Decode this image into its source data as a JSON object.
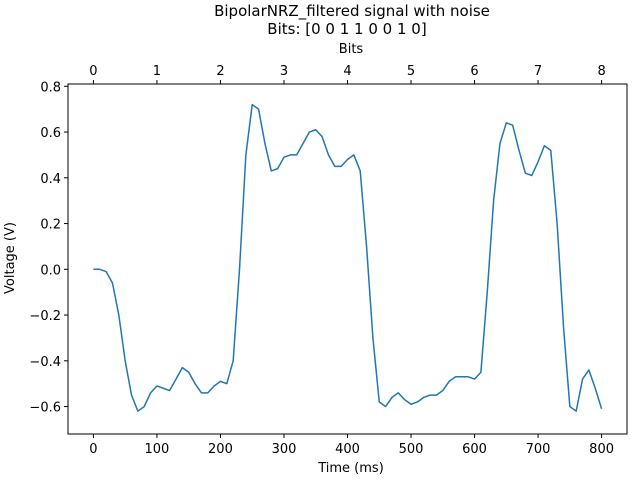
{
  "chart_data": {
    "type": "line",
    "title": "BipolarNRZ_filtered signal with noise",
    "subtitle": "Bits: [0 0 1 1 0 0 1 0]",
    "xlabel": "Time (ms)",
    "ylabel": "Voltage (V)",
    "x2label": "Bits",
    "xlim": [
      -40,
      840
    ],
    "ylim": [
      -0.72,
      0.81
    ],
    "x2lim": [
      -0.4,
      8.4
    ],
    "xticks": [
      0,
      100,
      200,
      300,
      400,
      500,
      600,
      700,
      800
    ],
    "x2ticks": [
      0,
      1,
      2,
      3,
      4,
      5,
      6,
      7,
      8
    ],
    "yticks": [
      {
        "value": -0.6,
        "label": "−0.6"
      },
      {
        "value": -0.4,
        "label": "−0.4"
      },
      {
        "value": -0.2,
        "label": "−0.2"
      },
      {
        "value": 0,
        "label": "0.0"
      },
      0.2,
      0.4,
      0.6,
      0.8
    ],
    "x": [
      0,
      10,
      20,
      30,
      40,
      50,
      60,
      70,
      80,
      90,
      100,
      110,
      120,
      130,
      140,
      150,
      160,
      170,
      180,
      190,
      200,
      210,
      220,
      230,
      240,
      250,
      260,
      270,
      280,
      290,
      300,
      310,
      320,
      330,
      340,
      350,
      360,
      370,
      380,
      390,
      400,
      410,
      420,
      430,
      440,
      450,
      460,
      470,
      480,
      490,
      500,
      510,
      520,
      530,
      540,
      550,
      560,
      570,
      580,
      590,
      600,
      610,
      620,
      630,
      640,
      650,
      660,
      670,
      680,
      690,
      700,
      710,
      720,
      730,
      740,
      750,
      760,
      770,
      780,
      790,
      800
    ],
    "series": [
      {
        "color": "#1f77b4",
        "values": [
          0,
          0,
          -0.01,
          -0.06,
          -0.2,
          -0.4,
          -0.55,
          -0.62,
          -0.6,
          -0.54,
          -0.51,
          -0.52,
          -0.53,
          -0.48,
          -0.43,
          -0.45,
          -0.5,
          -0.54,
          -0.54,
          -0.51,
          -0.49,
          -0.5,
          -0.4,
          0,
          0.5,
          0.72,
          0.7,
          0.55,
          0.43,
          0.44,
          0.49,
          0.5,
          0.5,
          0.55,
          0.6,
          0.61,
          0.58,
          0.5,
          0.45,
          0.45,
          0.48,
          0.5,
          0.43,
          0.1,
          -0.3,
          -0.58,
          -0.6,
          -0.56,
          -0.54,
          -0.57,
          -0.59,
          -0.58,
          -0.56,
          -0.55,
          -0.55,
          -0.53,
          -0.49,
          -0.47,
          -0.47,
          -0.47,
          -0.48,
          -0.45,
          -0.1,
          0.3,
          0.55,
          0.64,
          0.63,
          0.52,
          0.42,
          0.41,
          0.47,
          0.54,
          0.52,
          0.2,
          -0.25,
          -0.6,
          -0.62,
          -0.48,
          -0.44,
          -0.52,
          -0.61
        ]
      }
    ]
  }
}
